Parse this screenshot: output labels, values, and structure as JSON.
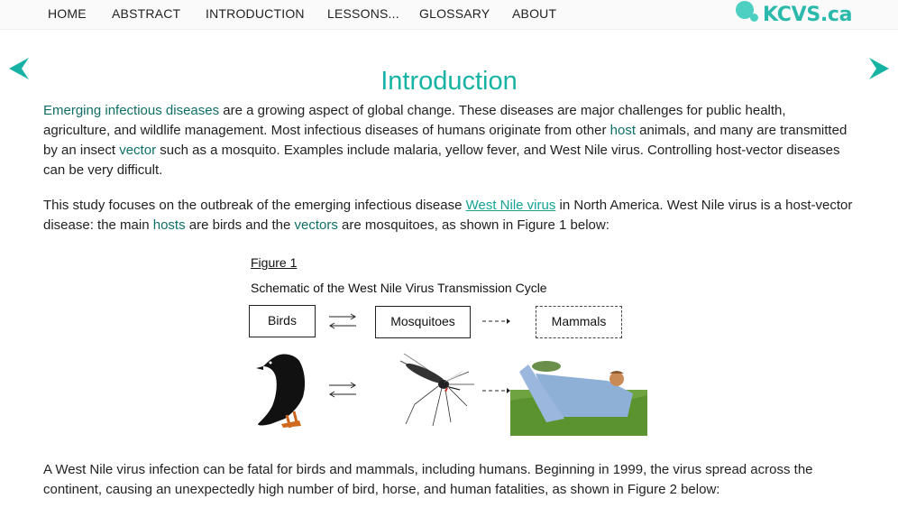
{
  "nav": {
    "items": [
      "HOME",
      "ABSTRACT",
      "INTRODUCTION",
      "LESSONS...",
      "GLOSSARY",
      "ABOUT"
    ]
  },
  "logo": {
    "text": "KCVS.ca"
  },
  "page": {
    "title": "Introduction"
  },
  "paragraph1": {
    "term1": "Emerging infectious diseases",
    "text1": " are a growing aspect of global change. These diseases are major challenges for public health, agriculture, and wildlife management. Most infectious diseases of humans originate from other ",
    "term2": "host",
    "text2": " animals, and many are transmitted by an insect ",
    "term3": "vector",
    "text3": " such as a mosquito. Examples include malaria, yellow fever, and West Nile virus. Controlling host-vector diseases can be very difficult."
  },
  "paragraph2": {
    "text1": "This study focuses on the outbreak of the emerging infectious disease ",
    "link1": "West Nile virus",
    "text2": " in North America. West Nile virus is a host-vector disease: the main ",
    "term1": "hosts",
    "text3": " are birds and the ",
    "term2": "vectors",
    "text4": " are mosquitoes, as shown in Figure 1 below:"
  },
  "figure1": {
    "label": "Figure 1",
    "caption": "Schematic of the West Nile Virus Transmission Cycle",
    "boxes": [
      "Birds",
      "Mosquitoes",
      "Mammals"
    ]
  },
  "paragraph3": {
    "text": "A West Nile virus infection can be fatal for birds and mammals, including humans. Beginning in 1999, the virus spread across the continent, causing an unexpectedly high number of bird, horse, and human fatalities, as shown in Figure 2 below:"
  },
  "colors": {
    "accent": "#16b3a4",
    "term": "#0e6f66"
  },
  "icons": {
    "prev": "chevron-left-icon",
    "next": "chevron-right-icon"
  }
}
